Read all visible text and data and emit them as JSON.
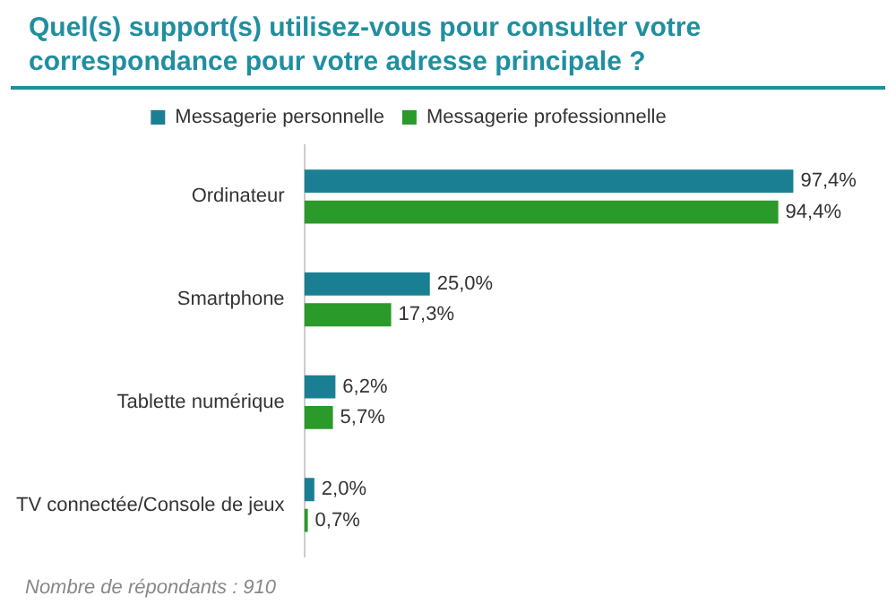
{
  "chart_data": {
    "type": "bar",
    "orientation": "horizontal",
    "title": "Quel(s) support(s) utilisez-vous pour consulter votre correspondance pour votre adresse principale ?",
    "categories": [
      "Ordinateur",
      "Smartphone",
      "Tablette numérique",
      "TV connectée/Console de jeux"
    ],
    "series": [
      {
        "name": "Messagerie personnelle",
        "color": "#1b7f93",
        "values": [
          97.4,
          25.0,
          6.2,
          2.0
        ],
        "value_labels": [
          "97,4%",
          "25,0%",
          "6,2%",
          "2,0%"
        ]
      },
      {
        "name": "Messagerie professionnelle",
        "color": "#2a9a2a",
        "values": [
          94.4,
          17.3,
          5.7,
          0.7
        ],
        "value_labels": [
          "94,4%",
          "17,3%",
          "5,7%",
          "0,7%"
        ]
      }
    ],
    "legend": "top",
    "annotations": [
      "Nombre de répondants :  910"
    ]
  }
}
